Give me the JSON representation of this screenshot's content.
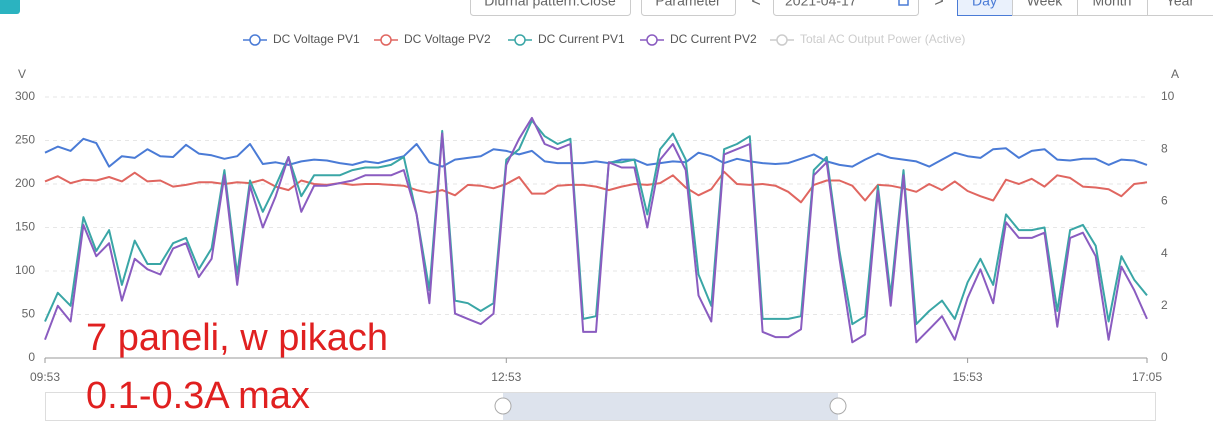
{
  "toolbar": {
    "pattern": "Diurnal pattern:Close",
    "parameter": "Parameter",
    "prev": "<",
    "date": "2021-04-17",
    "next": ">",
    "ranges": [
      "Day",
      "Week",
      "Month",
      "Year"
    ],
    "active": "Day"
  },
  "annotation": [
    "7 paneli, w pikach",
    "0.1-0.3A max"
  ],
  "chart_data": {
    "type": "line",
    "ylabel": "V",
    "y2label": "A",
    "categories": [
      "09:53",
      null,
      null,
      null,
      null,
      null,
      null,
      null,
      null,
      null,
      null,
      null,
      null,
      null,
      null,
      null,
      null,
      null,
      null,
      null,
      null,
      null,
      null,
      null,
      null,
      null,
      null,
      null,
      null,
      null,
      null,
      null,
      null,
      null,
      null,
      null,
      "12:53",
      null,
      null,
      null,
      null,
      null,
      null,
      null,
      null,
      null,
      null,
      null,
      null,
      null,
      null,
      null,
      null,
      null,
      null,
      null,
      null,
      null,
      null,
      null,
      null,
      null,
      null,
      null,
      null,
      null,
      null,
      null,
      null,
      null,
      null,
      null,
      "15:53",
      null,
      null,
      null,
      null,
      null,
      null,
      null,
      null,
      null,
      null,
      null,
      null,
      null,
      "17:05"
    ],
    "ylim": [
      0,
      300
    ],
    "yticks": [
      0,
      50,
      100,
      150,
      200,
      250,
      300
    ],
    "y2lim": [
      0,
      10
    ],
    "y2ticks": [
      0,
      2,
      4,
      6,
      8,
      10
    ],
    "grid": true,
    "series": [
      {
        "name": "DC Voltage PV1",
        "color": "#4a7bd6",
        "values": [
          236,
          243,
          238,
          252,
          247,
          220,
          232,
          230,
          240,
          232,
          231,
          245,
          235,
          233,
          229,
          232,
          246,
          223,
          225,
          222,
          226,
          228,
          227,
          224,
          222,
          226,
          224,
          228,
          232,
          246,
          225,
          220,
          228,
          230,
          232,
          240,
          238,
          234,
          238,
          226,
          224,
          224,
          224,
          226,
          224,
          228,
          228,
          222,
          224,
          226,
          225,
          236,
          232,
          224,
          229,
          226,
          224,
          223,
          224,
          229,
          234,
          226,
          222,
          220,
          228,
          235,
          230,
          228,
          226,
          220,
          228,
          236,
          232,
          230,
          240,
          241,
          230,
          238,
          240,
          228,
          227,
          229,
          229,
          222,
          228,
          227,
          222
        ]
      },
      {
        "name": "DC Voltage PV2",
        "color": "#e06660",
        "values": [
          203,
          209,
          201,
          205,
          204,
          208,
          203,
          213,
          203,
          204,
          197,
          199,
          202,
          202,
          200,
          202,
          201,
          205,
          197,
          193,
          204,
          200,
          199,
          201,
          199,
          200,
          200,
          199,
          198,
          193,
          190,
          193,
          187,
          199,
          198,
          195,
          200,
          208,
          189,
          189,
          198,
          199,
          199,
          197,
          193,
          197,
          200,
          199,
          201,
          210,
          196,
          187,
          194,
          214,
          200,
          199,
          200,
          198,
          191,
          179,
          199,
          204,
          204,
          198,
          181,
          199,
          198,
          195,
          191,
          200,
          193,
          203,
          192,
          186,
          181,
          205,
          200,
          206,
          197,
          210,
          207,
          197,
          196,
          194,
          186,
          200,
          202
        ]
      },
      {
        "name": "DC Current PV1",
        "color": "#3aa6a6",
        "axis": "y2",
        "values": [
          1.4,
          2.5,
          2.0,
          5.4,
          4.1,
          4.9,
          2.8,
          4.5,
          3.6,
          3.6,
          4.4,
          4.6,
          3.4,
          4.2,
          7.2,
          3.2,
          6.8,
          5.6,
          6.6,
          7.7,
          6.2,
          7.0,
          7.0,
          7.0,
          7.2,
          7.3,
          7.3,
          7.4,
          7.7,
          5.5,
          2.6,
          8.7,
          2.2,
          2.1,
          1.8,
          2.1,
          7.6,
          8.0,
          9.1,
          8.5,
          8.2,
          8.4,
          1.5,
          1.6,
          7.5,
          7.5,
          7.6,
          5.5,
          8.0,
          8.6,
          7.6,
          3.2,
          2.0,
          8.0,
          8.2,
          8.5,
          1.5,
          1.5,
          1.5,
          1.6,
          7.2,
          7.7,
          4.1,
          1.3,
          1.6,
          6.6,
          2.4,
          7.2,
          1.3,
          1.8,
          2.2,
          1.5,
          2.9,
          3.8,
          2.8,
          5.5,
          4.9,
          4.9,
          5.0,
          1.8,
          4.9,
          5.1,
          4.3,
          1.4,
          3.9,
          3.0,
          2.4
        ]
      },
      {
        "name": "DC Current PV2",
        "color": "#8a5cc0",
        "axis": "y2",
        "values": [
          0.7,
          2.0,
          1.4,
          5.1,
          3.9,
          4.4,
          2.2,
          3.8,
          3.4,
          3.2,
          4.2,
          4.4,
          3.1,
          3.8,
          7.0,
          2.8,
          6.6,
          5.0,
          6.2,
          7.7,
          5.6,
          6.6,
          6.6,
          6.7,
          6.8,
          7.0,
          7.0,
          7.0,
          7.2,
          5.5,
          2.1,
          8.6,
          1.7,
          1.5,
          1.3,
          1.7,
          7.4,
          8.4,
          9.2,
          8.2,
          8.0,
          8.2,
          1.0,
          1.0,
          7.5,
          7.3,
          7.3,
          5.0,
          7.6,
          8.2,
          7.2,
          2.4,
          1.4,
          7.8,
          8.0,
          8.2,
          1.0,
          0.8,
          0.8,
          1.1,
          7.0,
          7.5,
          3.8,
          0.6,
          0.9,
          6.4,
          2.0,
          7.0,
          0.6,
          1.1,
          1.6,
          0.7,
          2.3,
          3.4,
          2.1,
          5.2,
          4.6,
          4.6,
          4.8,
          1.2,
          4.6,
          4.8,
          3.9,
          0.7,
          3.5,
          2.6,
          1.5
        ]
      }
    ],
    "inactive_legend": {
      "name": "Total AC Output Power (Active)",
      "color": "#cccccc"
    }
  }
}
